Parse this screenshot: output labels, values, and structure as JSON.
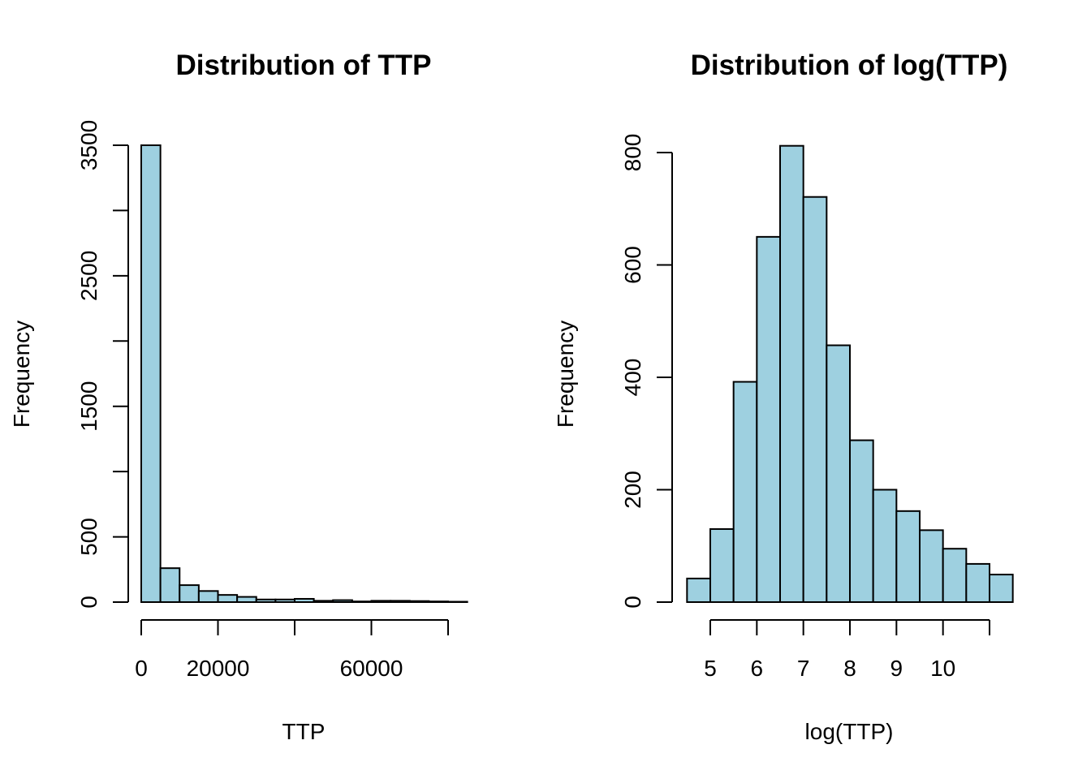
{
  "chart_data": [
    {
      "type": "bar",
      "title": "Distribution of TTP",
      "xlabel": "TTP",
      "ylabel": "Frequency",
      "bar_color": "#9ed0e0",
      "bins": [
        [
          0,
          5000
        ],
        [
          5000,
          10000
        ],
        [
          10000,
          15000
        ],
        [
          15000,
          20000
        ],
        [
          20000,
          25000
        ],
        [
          25000,
          30000
        ],
        [
          30000,
          35000
        ],
        [
          35000,
          40000
        ],
        [
          40000,
          45000
        ],
        [
          45000,
          50000
        ],
        [
          50000,
          55000
        ],
        [
          55000,
          60000
        ],
        [
          60000,
          65000
        ],
        [
          65000,
          70000
        ],
        [
          70000,
          75000
        ],
        [
          75000,
          80000
        ],
        [
          80000,
          85000
        ]
      ],
      "values": [
        3500,
        260,
        130,
        85,
        55,
        40,
        20,
        20,
        25,
        10,
        15,
        5,
        10,
        10,
        8,
        5,
        3
      ],
      "xlim": [
        -2000,
        85000
      ],
      "ylim": [
        0,
        3500
      ],
      "x_ticks": [
        0,
        20000,
        40000,
        60000,
        80000
      ],
      "x_tick_labels": [
        "0",
        "20000",
        "",
        "60000",
        ""
      ],
      "y_ticks": [
        0,
        500,
        1000,
        1500,
        2000,
        2500,
        3000,
        3500
      ],
      "y_tick_labels": [
        "0",
        "500",
        "",
        "1500",
        "",
        "2500",
        "",
        "3500"
      ],
      "grid": false
    },
    {
      "type": "bar",
      "title": "Distribution of log(TTP)",
      "xlabel": "log(TTP)",
      "ylabel": "Frequency",
      "bar_color": "#9ed0e0",
      "bins": [
        [
          4.5,
          5
        ],
        [
          5,
          5.5
        ],
        [
          5.5,
          6
        ],
        [
          6,
          6.5
        ],
        [
          6.5,
          7
        ],
        [
          7,
          7.5
        ],
        [
          7.5,
          8
        ],
        [
          8,
          8.5
        ],
        [
          8.5,
          9
        ],
        [
          9,
          9.5
        ],
        [
          9.5,
          10
        ],
        [
          10,
          10.5
        ],
        [
          10.5,
          11
        ],
        [
          11,
          11.5
        ]
      ],
      "values": [
        42,
        130,
        392,
        650,
        812,
        721,
        457,
        288,
        200,
        162,
        128,
        95,
        68,
        49
      ],
      "xlim": [
        4.4,
        11.6
      ],
      "ylim": [
        0,
        800
      ],
      "x_ticks": [
        5,
        6,
        7,
        8,
        9,
        10,
        11
      ],
      "x_tick_labels": [
        "5",
        "6",
        "7",
        "8",
        "9",
        "10",
        ""
      ],
      "y_ticks": [
        0,
        200,
        400,
        600,
        800
      ],
      "y_tick_labels": [
        "0",
        "200",
        "400",
        "600",
        "800"
      ],
      "grid": false
    }
  ]
}
